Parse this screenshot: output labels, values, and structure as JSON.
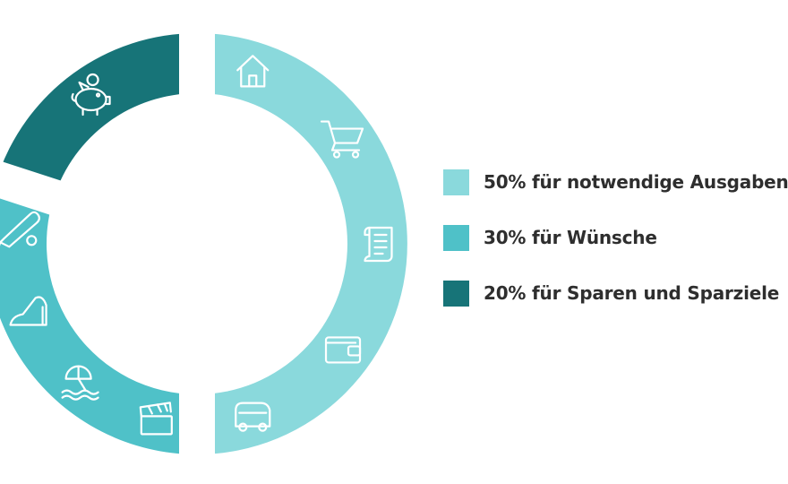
{
  "chart_data": {
    "type": "pie",
    "title": "",
    "slices": [
      {
        "label": "50% für notwendige Ausgaben",
        "value": 50,
        "color": "#8ad9dc",
        "icons": [
          "house-icon",
          "shopping-cart-icon",
          "document-scroll-icon",
          "wallet-icon",
          "car-icon"
        ]
      },
      {
        "label": "30% für Wünsche",
        "value": 30,
        "color": "#4fc1c8",
        "icons": [
          "film-clapper-icon",
          "beach-umbrella-icon",
          "high-heel-shoe-icon",
          "baseball-bat-icon"
        ]
      },
      {
        "label": "20% für Sparen und Sparziele",
        "value": 20,
        "color": "#177478",
        "icons": [
          "piggy-bank-icon"
        ]
      }
    ],
    "legend_position": "right"
  }
}
